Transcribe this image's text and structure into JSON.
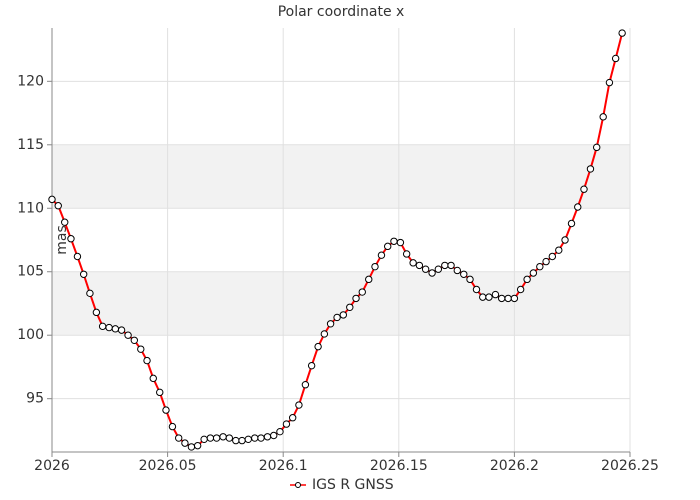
{
  "chart_data": {
    "type": "line",
    "title": "Polar coordinate x",
    "ylabel": "mas",
    "x": [
      2026,
      2026.0027,
      2026.0055,
      2026.0082,
      2026.011,
      2026.0137,
      2026.0164,
      2026.0192,
      2026.0219,
      2026.0247,
      2026.0274,
      2026.0301,
      2026.0329,
      2026.0356,
      2026.0384,
      2026.0411,
      2026.0438,
      2026.0466,
      2026.0493,
      2026.0521,
      2026.0548,
      2026.0575,
      2026.0603,
      2026.063,
      2026.0658,
      2026.0685,
      2026.0712,
      2026.074,
      2026.0767,
      2026.0795,
      2026.0822,
      2026.0849,
      2026.0877,
      2026.0904,
      2026.0932,
      2026.0959,
      2026.0986,
      2026.1014,
      2026.1041,
      2026.1068,
      2026.1096,
      2026.1123,
      2026.1151,
      2026.1178,
      2026.1205,
      2026.1233,
      2026.126,
      2026.1288,
      2026.1315,
      2026.1342,
      2026.137,
      2026.1397,
      2026.1425,
      2026.1452,
      2026.1479,
      2026.1507,
      2026.1534,
      2026.1562,
      2026.1589,
      2026.1616,
      2026.1644,
      2026.1671,
      2026.1699,
      2026.1726,
      2026.1753,
      2026.1781,
      2026.1808,
      2026.1836,
      2026.1863,
      2026.189,
      2026.1918,
      2026.1945,
      2026.1973,
      2026.2,
      2026.2027,
      2026.2055,
      2026.2082,
      2026.211,
      2026.2137,
      2026.2164,
      2026.2192,
      2026.2219,
      2026.2247,
      2026.2274,
      2026.2301,
      2026.2329,
      2026.2356,
      2026.2384,
      2026.2411,
      2026.2438,
      2026.2466
    ],
    "series": [
      {
        "name": "IGS R GNSS",
        "color": "#ff0000",
        "values": [
          110.7,
          110.2,
          108.9,
          107.6,
          106.2,
          104.8,
          103.3,
          101.8,
          100.7,
          100.6,
          100.5,
          100.4,
          100.0,
          99.6,
          98.9,
          98.0,
          96.6,
          95.5,
          94.1,
          92.8,
          91.9,
          91.5,
          91.2,
          91.3,
          91.8,
          91.9,
          91.9,
          92.0,
          91.9,
          91.7,
          91.7,
          91.8,
          91.9,
          91.9,
          92.0,
          92.1,
          92.4,
          93.0,
          93.5,
          94.5,
          96.1,
          97.6,
          99.1,
          100.1,
          100.9,
          101.4,
          101.6,
          102.2,
          102.9,
          103.4,
          104.4,
          105.4,
          106.3,
          107.0,
          107.4,
          107.3,
          106.4,
          105.7,
          105.5,
          105.2,
          104.9,
          105.2,
          105.5,
          105.5,
          105.1,
          104.8,
          104.4,
          103.6,
          103.0,
          103.0,
          103.2,
          102.9,
          102.9,
          102.9,
          103.6,
          104.4,
          104.9,
          105.4,
          105.8,
          106.2,
          106.7,
          107.5,
          108.8,
          110.1,
          111.5,
          113.1,
          114.8,
          117.2,
          119.9,
          121.8,
          123.8
        ]
      }
    ],
    "xlim": [
      2026,
      2026.25
    ],
    "xticks": [
      2026,
      2026.05,
      2026.1,
      2026.15,
      2026.2,
      2026.25
    ],
    "ylim": [
      90.8,
      124.2
    ],
    "yticks": [
      95,
      100,
      105,
      110,
      115,
      120
    ],
    "grid": true,
    "bands": true,
    "legend": "bottom"
  }
}
